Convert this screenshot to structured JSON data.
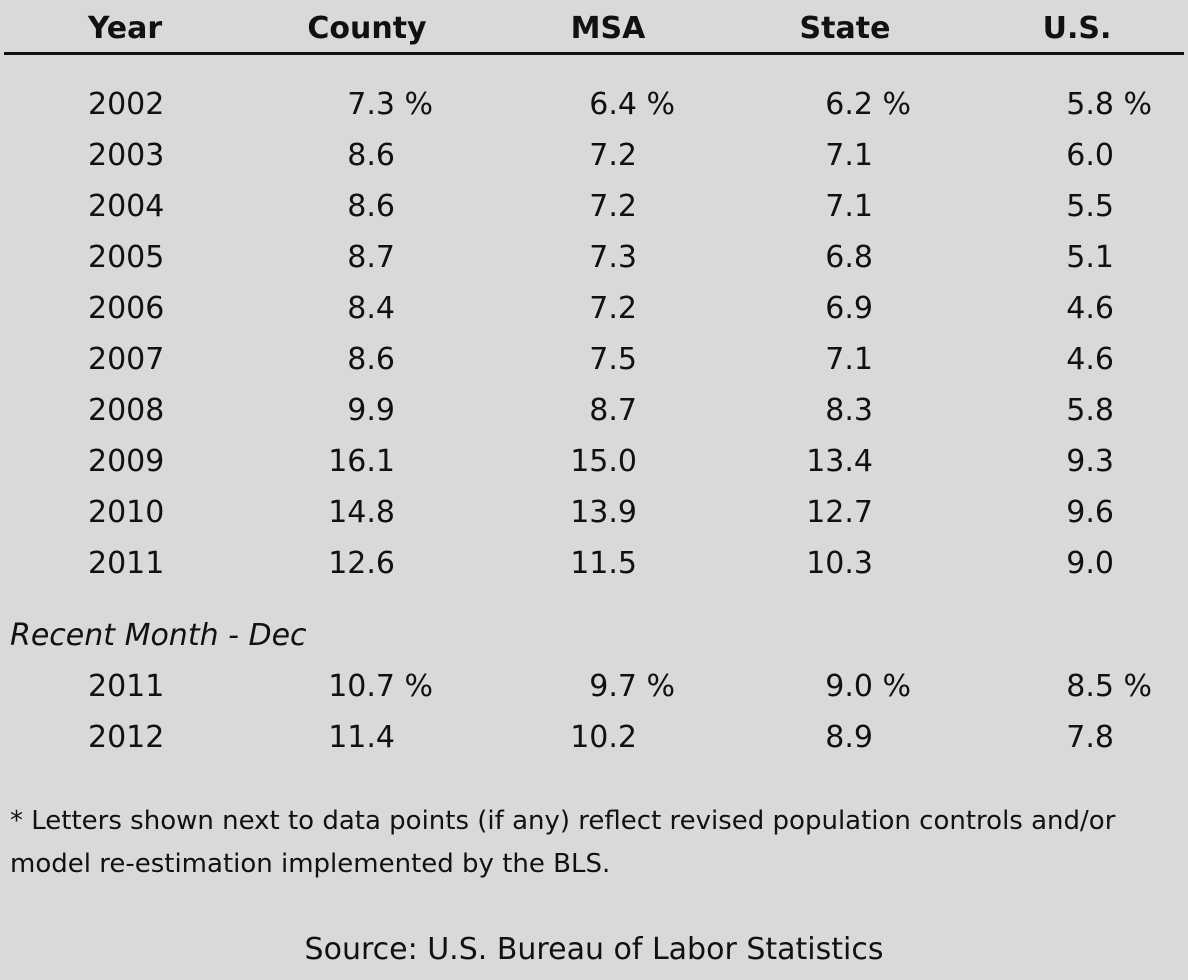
{
  "chart_data": {
    "type": "table",
    "columns": [
      "Year",
      "County",
      "MSA",
      "State",
      "U.S."
    ],
    "percent_sign": "%",
    "rows": [
      [
        "2002",
        "7.3",
        "6.4",
        "6.2",
        "5.8"
      ],
      [
        "2003",
        "8.6",
        "7.2",
        "7.1",
        "6.0"
      ],
      [
        "2004",
        "8.6",
        "7.2",
        "7.1",
        "5.5"
      ],
      [
        "2005",
        "8.7",
        "7.3",
        "6.8",
        "5.1"
      ],
      [
        "2006",
        "8.4",
        "7.2",
        "6.9",
        "4.6"
      ],
      [
        "2007",
        "8.6",
        "7.5",
        "7.1",
        "4.6"
      ],
      [
        "2008",
        "9.9",
        "8.7",
        "8.3",
        "5.8"
      ],
      [
        "2009",
        "16.1",
        "15.0",
        "13.4",
        "9.3"
      ],
      [
        "2010",
        "14.8",
        "13.9",
        "12.7",
        "9.6"
      ],
      [
        "2011",
        "12.6",
        "11.5",
        "10.3",
        "9.0"
      ]
    ],
    "section_label": "Recent Month - Dec",
    "recent_rows": [
      [
        "2011",
        "10.7",
        "9.7",
        "9.0",
        "8.5"
      ],
      [
        "2012",
        "11.4",
        "10.2",
        "8.9",
        "7.8"
      ]
    ],
    "footnote": "* Letters shown next to data points (if any) reflect revised population controls and/or model re-estimation implemented by the BLS.",
    "source": "Source: U.S. Bureau of Labor Statistics"
  }
}
